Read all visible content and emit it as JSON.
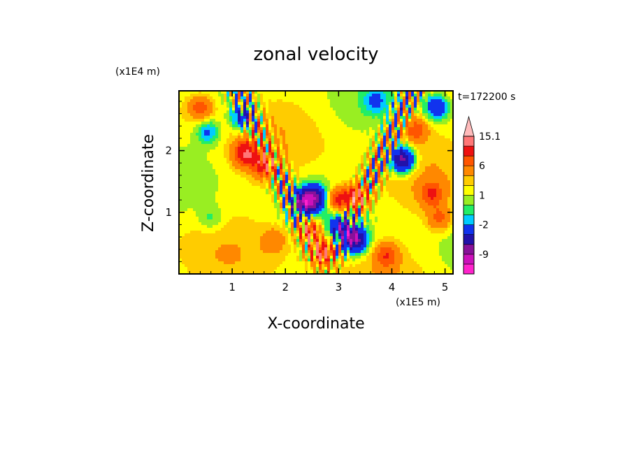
{
  "chart_data": {
    "type": "heatmap",
    "title": "zonal velocity",
    "xlabel": "X-coordinate",
    "ylabel": "Z-coordinate",
    "x_unit": "(x1E5 m)",
    "y_unit": "(x1E4 m)",
    "time_label": "t=172200 s",
    "xlim": [
      0,
      5.15
    ],
    "ylim": [
      0,
      2.97
    ],
    "x_ticks": [
      1,
      2,
      3,
      4,
      5
    ],
    "y_ticks": [
      1,
      2
    ],
    "x_tick_labels": [
      "1",
      "2",
      "3",
      "4",
      "5"
    ],
    "y_tick_labels": [
      "1",
      "2"
    ],
    "colorbar": {
      "levels": [
        -15,
        -12,
        -9,
        -6,
        -3,
        -2,
        -1,
        0,
        1,
        2,
        4,
        6,
        9,
        12,
        15.1
      ],
      "colors": [
        "#ff22cc",
        "#cc11bb",
        "#881199",
        "#2211aa",
        "#1133ee",
        "#00ccff",
        "#22ee66",
        "#99ee22",
        "#ffff00",
        "#ffcc00",
        "#ff8800",
        "#ff5500",
        "#ee1111",
        "#ff7777",
        "#ffbbbb"
      ],
      "labels": [
        "15.1",
        "6",
        "1",
        "-2",
        "-9"
      ],
      "label_values": [
        15.1,
        6,
        1,
        -2,
        -9
      ]
    },
    "features": [
      {
        "x": 0.55,
        "z": 2.3,
        "v": -4
      },
      {
        "x": 0.6,
        "z": 0.9,
        "v": -2
      },
      {
        "x": 1.25,
        "z": 1.95,
        "v": 8
      },
      {
        "x": 1.6,
        "z": 1.75,
        "v": 6
      },
      {
        "x": 1.2,
        "z": 2.55,
        "v": -7
      },
      {
        "x": 2.35,
        "z": 1.15,
        "v": -10
      },
      {
        "x": 2.55,
        "z": 1.25,
        "v": -8
      },
      {
        "x": 2.45,
        "z": 0.7,
        "v": 7
      },
      {
        "x": 2.7,
        "z": 0.35,
        "v": 8
      },
      {
        "x": 3.0,
        "z": 1.2,
        "v": 7
      },
      {
        "x": 3.35,
        "z": 1.25,
        "v": 8
      },
      {
        "x": 3.3,
        "z": 0.55,
        "v": -11
      },
      {
        "x": 3.05,
        "z": 0.75,
        "v": -7
      },
      {
        "x": 4.2,
        "z": 1.85,
        "v": -11
      },
      {
        "x": 4.75,
        "z": 1.3,
        "v": 5
      },
      {
        "x": 4.85,
        "z": 2.7,
        "v": -6
      },
      {
        "x": 4.45,
        "z": 2.35,
        "v": 5
      },
      {
        "x": 0.4,
        "z": 2.7,
        "v": 5
      },
      {
        "x": 3.7,
        "z": 2.8,
        "v": -3
      },
      {
        "x": 4.9,
        "z": 0.9,
        "v": 4
      },
      {
        "x": 1.8,
        "z": 0.55,
        "v": 3
      },
      {
        "x": 3.9,
        "z": 0.3,
        "v": 5
      }
    ]
  }
}
